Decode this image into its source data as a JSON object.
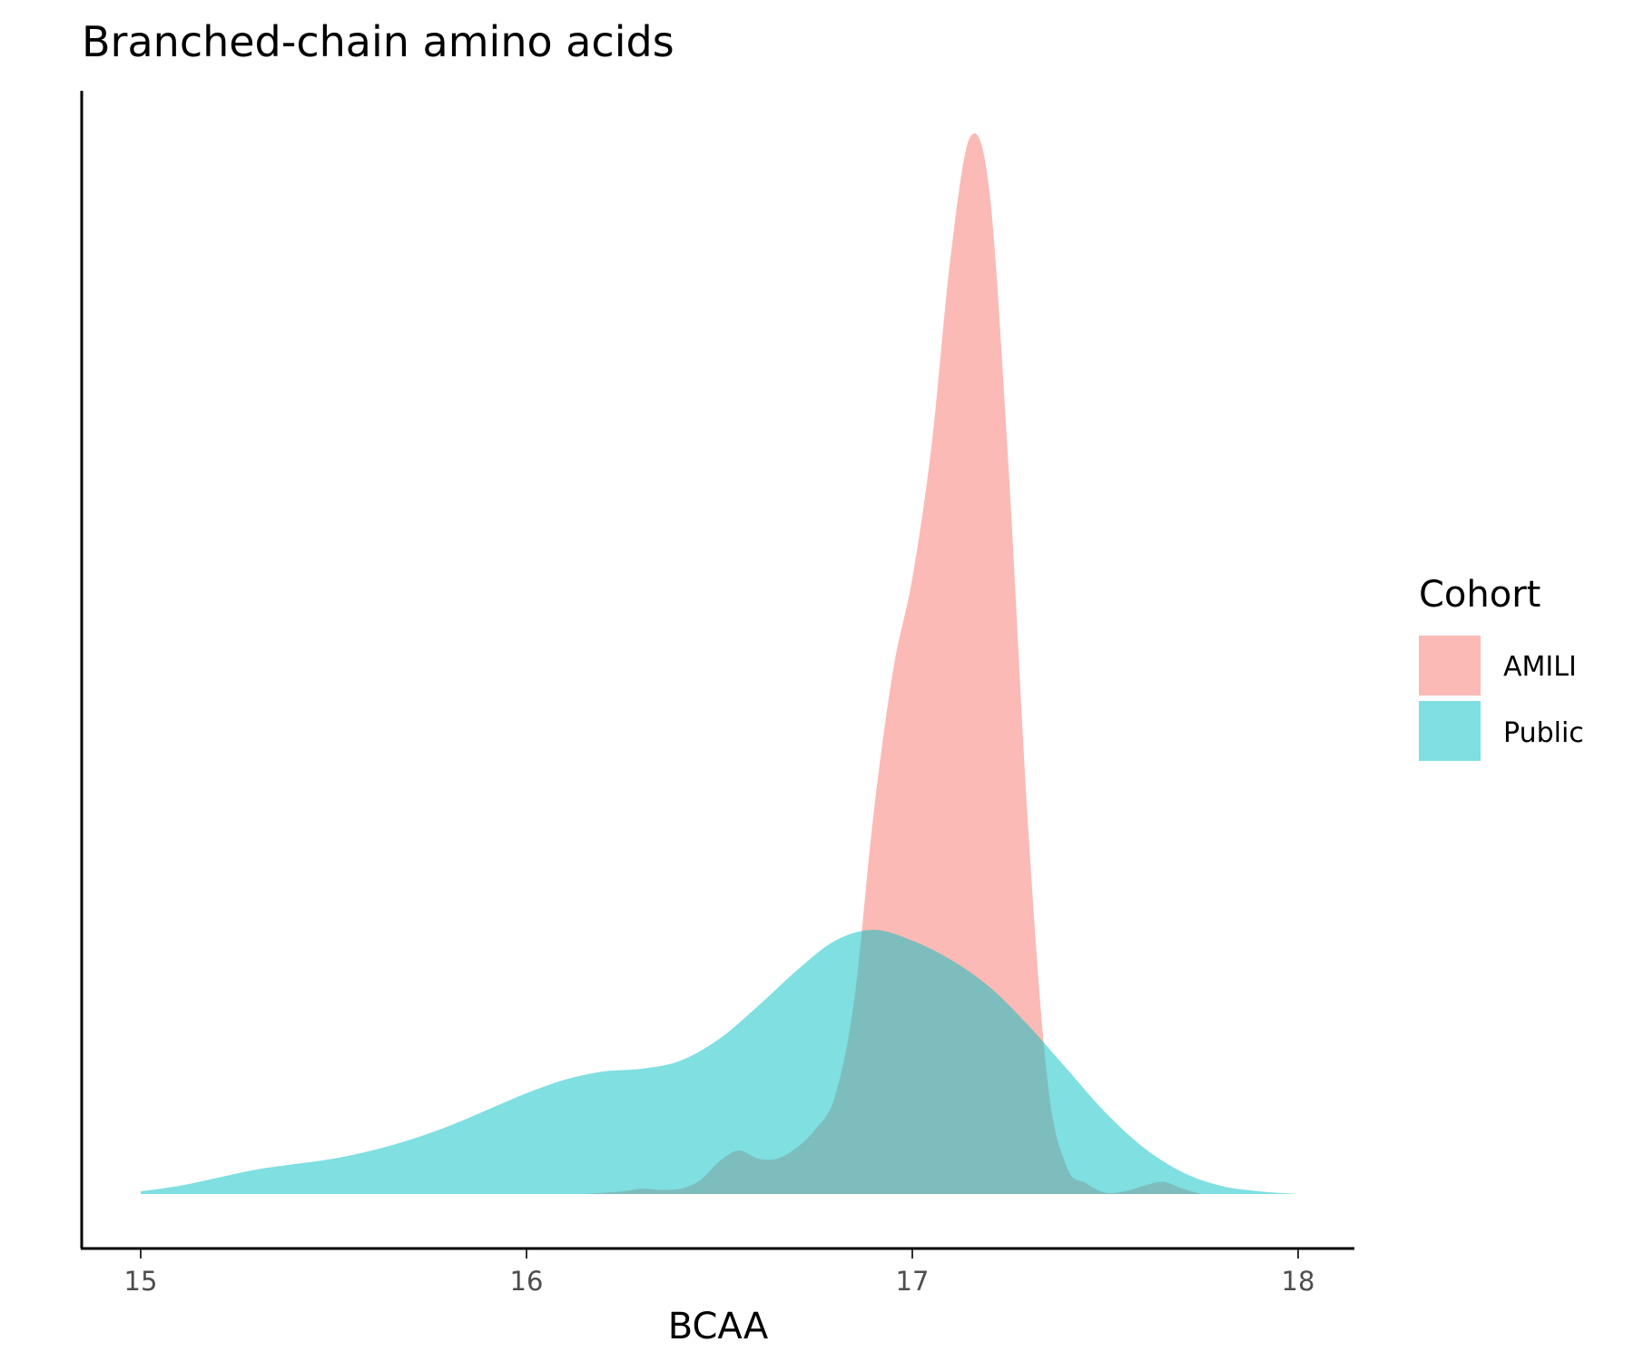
{
  "chart_data": {
    "type": "area",
    "title": "Branched-chain amino acids",
    "xlabel": "BCAA",
    "ylabel": "",
    "xlim": [
      15,
      18
    ],
    "x_ticks": [
      "15",
      "16",
      "17",
      "18"
    ],
    "grid": false,
    "legend": {
      "title": "Cohort",
      "placement": "right"
    },
    "series": [
      {
        "name": "AMILI",
        "color": "#F8766D",
        "points": [
          [
            16.15,
            0.0
          ],
          [
            16.25,
            0.01
          ],
          [
            16.3,
            0.02
          ],
          [
            16.35,
            0.015
          ],
          [
            16.4,
            0.02
          ],
          [
            16.45,
            0.05
          ],
          [
            16.5,
            0.12
          ],
          [
            16.55,
            0.16
          ],
          [
            16.6,
            0.13
          ],
          [
            16.65,
            0.13
          ],
          [
            16.7,
            0.17
          ],
          [
            16.75,
            0.24
          ],
          [
            16.8,
            0.36
          ],
          [
            16.85,
            0.72
          ],
          [
            16.9,
            1.4
          ],
          [
            16.95,
            1.92
          ],
          [
            17.0,
            2.26
          ],
          [
            17.05,
            2.75
          ],
          [
            17.1,
            3.45
          ],
          [
            17.15,
            3.88
          ],
          [
            17.2,
            3.68
          ],
          [
            17.25,
            2.65
          ],
          [
            17.3,
            1.35
          ],
          [
            17.35,
            0.42
          ],
          [
            17.4,
            0.1
          ],
          [
            17.45,
            0.04
          ],
          [
            17.5,
            0.005
          ],
          [
            17.55,
            0.01
          ],
          [
            17.6,
            0.03
          ],
          [
            17.65,
            0.045
          ],
          [
            17.7,
            0.02
          ],
          [
            17.75,
            0.0
          ]
        ]
      },
      {
        "name": "Public",
        "color": "#00BFC4",
        "points": [
          [
            15.0,
            0.01
          ],
          [
            15.1,
            0.03
          ],
          [
            15.2,
            0.06
          ],
          [
            15.3,
            0.09
          ],
          [
            15.4,
            0.11
          ],
          [
            15.5,
            0.13
          ],
          [
            15.6,
            0.16
          ],
          [
            15.7,
            0.2
          ],
          [
            15.8,
            0.25
          ],
          [
            15.9,
            0.31
          ],
          [
            16.0,
            0.37
          ],
          [
            16.1,
            0.42
          ],
          [
            16.2,
            0.45
          ],
          [
            16.3,
            0.46
          ],
          [
            16.4,
            0.49
          ],
          [
            16.5,
            0.57
          ],
          [
            16.6,
            0.69
          ],
          [
            16.7,
            0.82
          ],
          [
            16.8,
            0.93
          ],
          [
            16.9,
            0.97
          ],
          [
            17.0,
            0.93
          ],
          [
            17.1,
            0.86
          ],
          [
            17.2,
            0.76
          ],
          [
            17.3,
            0.62
          ],
          [
            17.4,
            0.46
          ],
          [
            17.5,
            0.3
          ],
          [
            17.6,
            0.17
          ],
          [
            17.7,
            0.08
          ],
          [
            17.8,
            0.03
          ],
          [
            17.9,
            0.01
          ],
          [
            18.0,
            0.0
          ]
        ]
      }
    ]
  }
}
